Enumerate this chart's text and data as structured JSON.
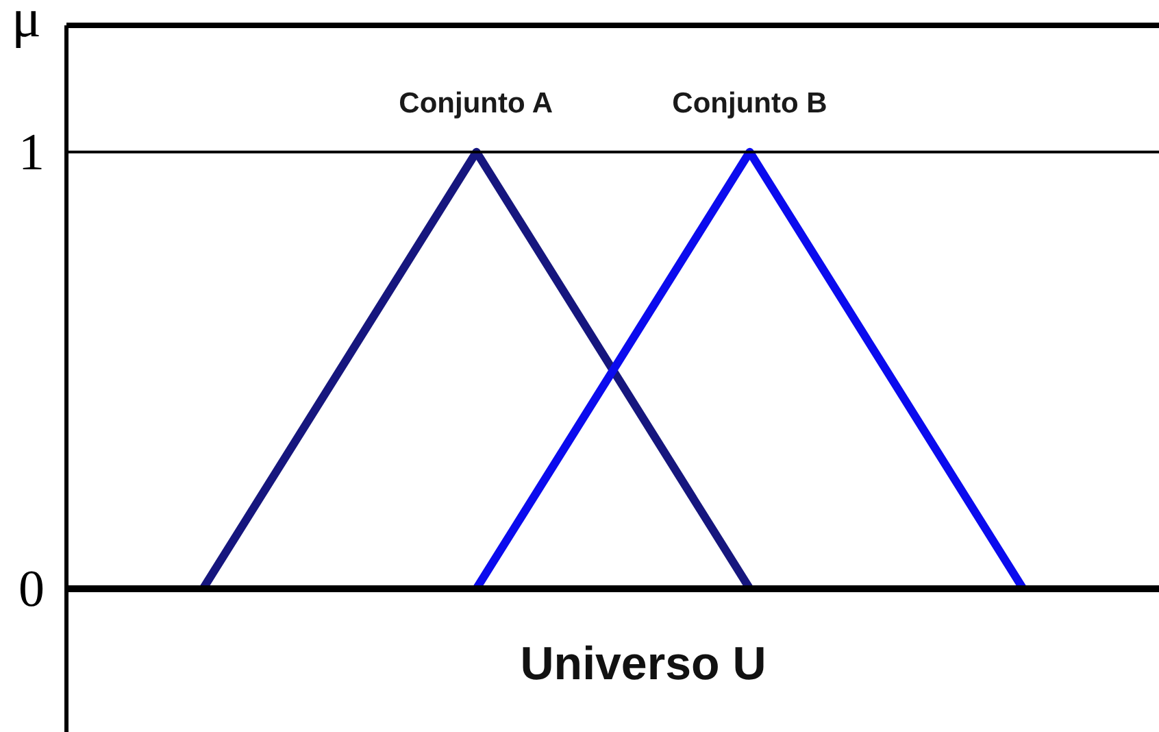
{
  "chart_data": {
    "type": "line",
    "xlabel": "Universo U",
    "ylabel": "μ",
    "categories": [
      null,
      null,
      null,
      null
    ],
    "series": [
      {
        "name": "Conjunto A",
        "color": "#16167e",
        "values": [
          0,
          1,
          0,
          null
        ]
      },
      {
        "name": "Conjunto B",
        "color": "#0b0bee",
        "values": [
          null,
          0,
          1,
          0
        ]
      }
    ],
    "ylim": [
      -0.33,
      1.29
    ],
    "yticks": [
      0,
      1
    ],
    "ref_lines": [
      {
        "axis": "y",
        "value": 1,
        "color": "#000000"
      }
    ],
    "tick_labels": "y",
    "line_style": "solid"
  }
}
